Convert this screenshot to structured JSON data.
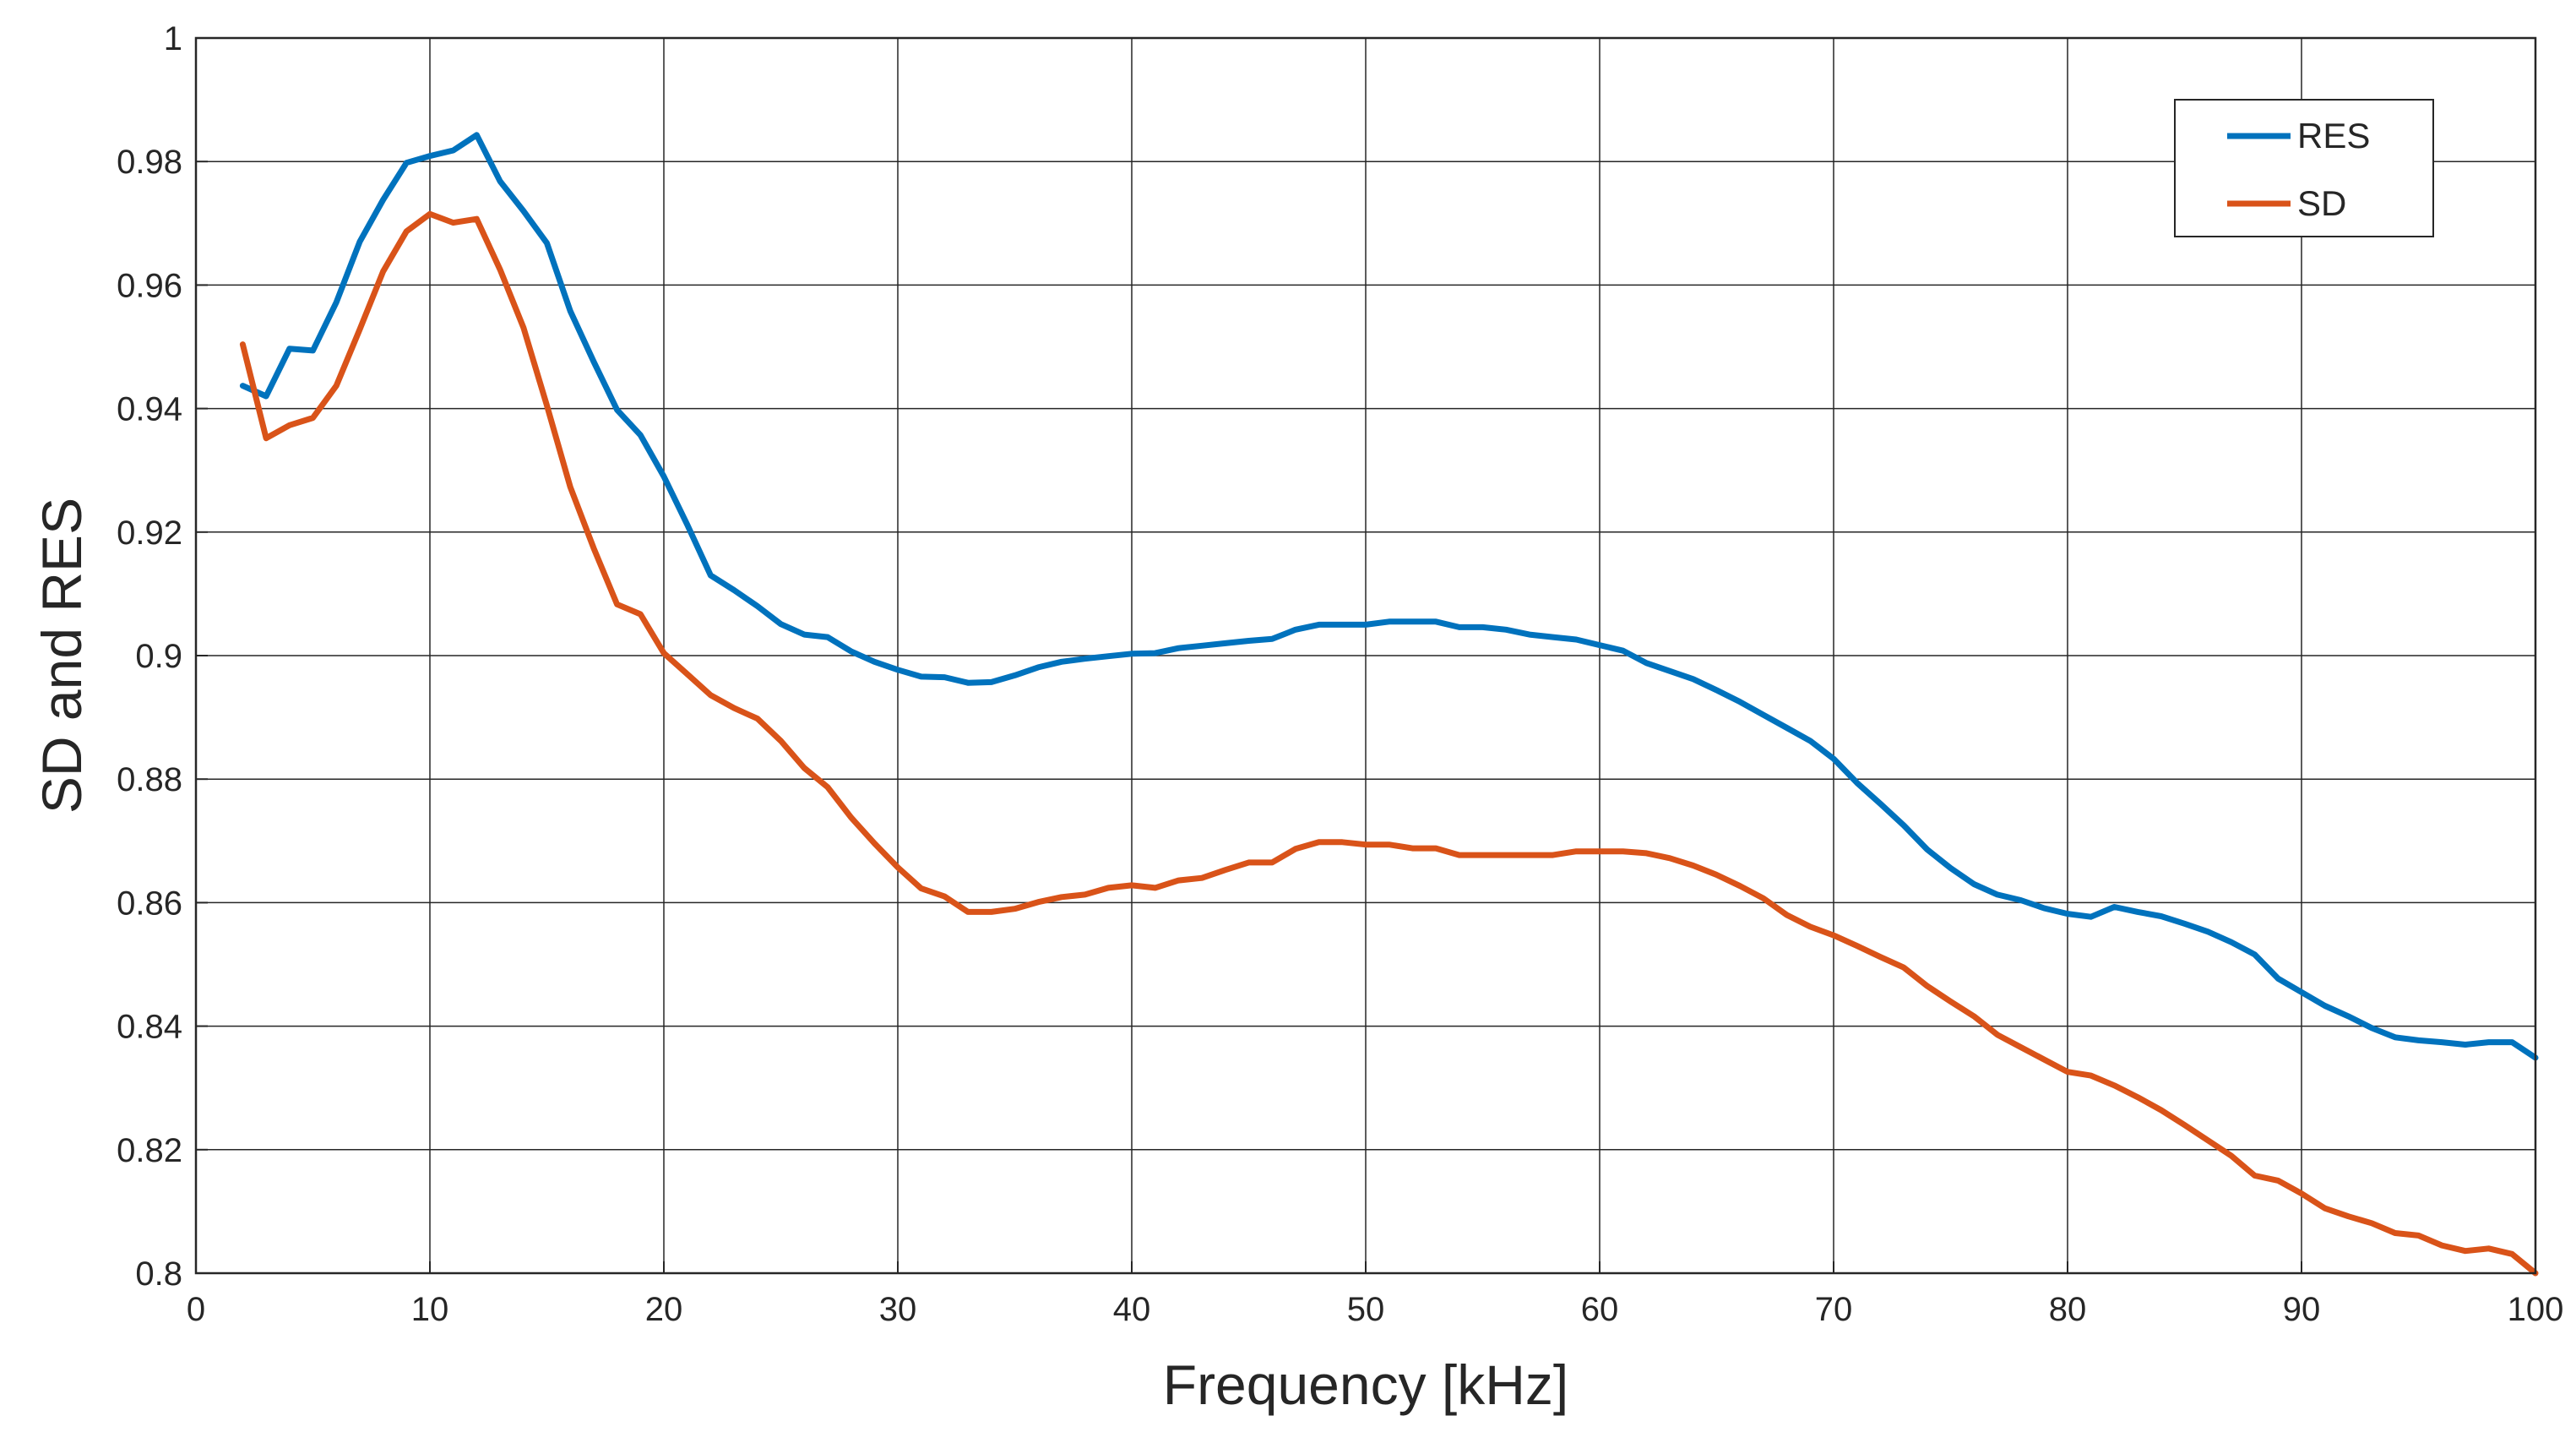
{
  "chart_data": {
    "type": "line",
    "title": "",
    "xlabel": "Frequency [kHz]",
    "ylabel": "SD and RES",
    "xlim": [
      0,
      100
    ],
    "ylim": [
      0.8,
      1
    ],
    "grid": true,
    "legend_position": "top-right",
    "x_ticks": [
      "0",
      "10",
      "20",
      "30",
      "40",
      "50",
      "60",
      "70",
      "80",
      "90",
      "100"
    ],
    "y_ticks": [
      "0.8",
      "0.82",
      "0.84",
      "0.86",
      "0.88",
      "0.9",
      "0.92",
      "0.94",
      "0.96",
      "0.98",
      "1"
    ],
    "x": [
      2,
      3,
      4,
      5,
      6,
      7,
      8,
      9,
      10,
      11,
      12,
      13,
      14,
      15,
      16,
      17,
      18,
      19,
      20,
      21,
      22,
      23,
      24,
      25,
      26,
      27,
      28,
      29,
      30,
      31,
      32,
      33,
      34,
      35,
      36,
      37,
      38,
      39,
      40,
      41,
      42,
      43,
      44,
      45,
      46,
      47,
      48,
      49,
      50,
      51,
      52,
      53,
      54,
      55,
      56,
      57,
      58,
      59,
      60,
      61,
      62,
      63,
      64,
      65,
      66,
      67,
      68,
      69,
      70,
      71,
      72,
      73,
      74,
      75,
      76,
      77,
      78,
      79,
      80,
      81,
      82,
      83,
      84,
      85,
      86,
      87,
      88,
      89,
      90,
      91,
      92,
      93,
      94,
      95,
      96,
      97,
      98,
      99,
      100
    ],
    "series": [
      {
        "name": "RES",
        "color": "#0072BD",
        "values": [
          0.9437,
          0.942,
          0.9497,
          0.9494,
          0.9572,
          0.967,
          0.9738,
          0.9798,
          0.9809,
          0.9818,
          0.9843,
          0.9768,
          0.972,
          0.9668,
          0.9558,
          0.9476,
          0.9398,
          0.9357,
          0.929,
          0.9212,
          0.913,
          0.9106,
          0.908,
          0.9051,
          0.9034,
          0.903,
          0.9007,
          0.899,
          0.8977,
          0.8966,
          0.8965,
          0.8956,
          0.8957,
          0.8968,
          0.8981,
          0.899,
          0.8995,
          0.8999,
          0.9003,
          0.9004,
          0.9012,
          0.9016,
          0.902,
          0.9024,
          0.9027,
          0.9042,
          0.905,
          0.905,
          0.905,
          0.9055,
          0.9055,
          0.9055,
          0.9046,
          0.9046,
          0.9042,
          0.9034,
          0.903,
          0.9026,
          0.9017,
          0.9008,
          0.8988,
          0.8975,
          0.8962,
          0.8944,
          0.8925,
          0.8904,
          0.8883,
          0.8862,
          0.8833,
          0.8794,
          0.876,
          0.8725,
          0.8686,
          0.8656,
          0.863,
          0.8613,
          0.8604,
          0.8591,
          0.8582,
          0.8577,
          0.8593,
          0.8585,
          0.8578,
          0.8566,
          0.8553,
          0.8536,
          0.8516,
          0.8477,
          0.8455,
          0.8433,
          0.8416,
          0.8397,
          0.8382,
          0.8377,
          0.8374,
          0.837,
          0.8374,
          0.8374,
          0.8349
        ]
      },
      {
        "name": "SD",
        "color": "#D95319",
        "values": [
          0.9504,
          0.9352,
          0.9373,
          0.9385,
          0.9437,
          0.9528,
          0.9622,
          0.9687,
          0.9715,
          0.9701,
          0.9707,
          0.9625,
          0.9531,
          0.9405,
          0.9273,
          0.9174,
          0.9083,
          0.9067,
          0.9004,
          0.897,
          0.8936,
          0.8915,
          0.8898,
          0.8862,
          0.8818,
          0.8787,
          0.8738,
          0.8696,
          0.8657,
          0.8623,
          0.861,
          0.8585,
          0.8585,
          0.859,
          0.8601,
          0.8609,
          0.8613,
          0.8624,
          0.8628,
          0.8624,
          0.8636,
          0.864,
          0.8653,
          0.8665,
          0.8665,
          0.8687,
          0.8698,
          0.8698,
          0.8694,
          0.8694,
          0.8688,
          0.8688,
          0.8677,
          0.8677,
          0.8677,
          0.8677,
          0.8677,
          0.8683,
          0.8683,
          0.8683,
          0.868,
          0.8672,
          0.866,
          0.8645,
          0.8627,
          0.8607,
          0.858,
          0.8561,
          0.8547,
          0.853,
          0.8512,
          0.8495,
          0.8465,
          0.844,
          0.8416,
          0.8386,
          0.8366,
          0.8346,
          0.8326,
          0.832,
          0.8304,
          0.8285,
          0.8264,
          0.824,
          0.8215,
          0.819,
          0.8158,
          0.815,
          0.8129,
          0.8105,
          0.8092,
          0.8081,
          0.8065,
          0.8061,
          0.8045,
          0.8036,
          0.804,
          0.8031,
          0.8
        ]
      }
    ]
  }
}
